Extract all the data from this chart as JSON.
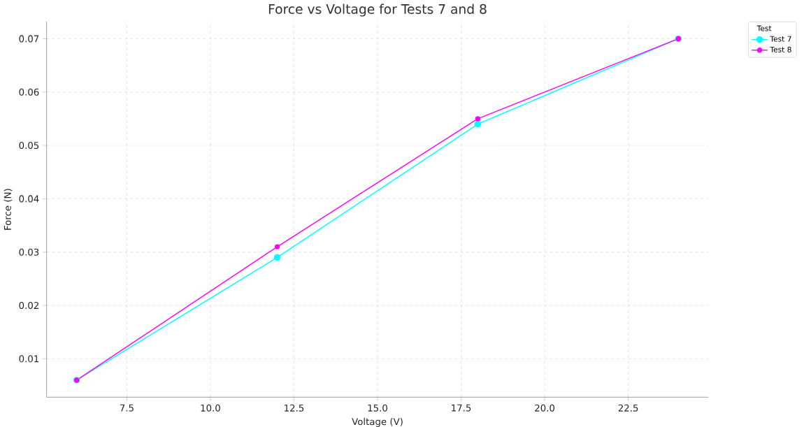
{
  "chart_data": {
    "type": "line",
    "title": "Force vs Voltage for Tests 7 and 8",
    "xlabel": "Voltage (V)",
    "ylabel": "Force (N)",
    "legend_title": "Test",
    "x": [
      6,
      12,
      18,
      24
    ],
    "series": [
      {
        "name": "Test 7",
        "color": "#00ffff",
        "values": [
          0.006,
          0.029,
          0.054,
          0.07
        ]
      },
      {
        "name": "Test 8",
        "color": "#ff00ff",
        "values": [
          0.006,
          0.031,
          0.055,
          0.07
        ]
      }
    ],
    "xlim": [
      5.1,
      24.9
    ],
    "ylim": [
      0.0028,
      0.0732
    ],
    "xticks": [
      7.5,
      {
        "value": 10,
        "label": "10.0"
      },
      12.5,
      {
        "value": 15,
        "label": "15.0"
      },
      17.5,
      {
        "value": 20,
        "label": "20.0"
      },
      22.5
    ],
    "yticks": [
      0.01,
      0.02,
      0.03,
      0.04,
      0.05,
      0.06,
      0.07
    ],
    "grid": true,
    "legend": "top right",
    "marker": "circle",
    "line_style": "solid"
  }
}
